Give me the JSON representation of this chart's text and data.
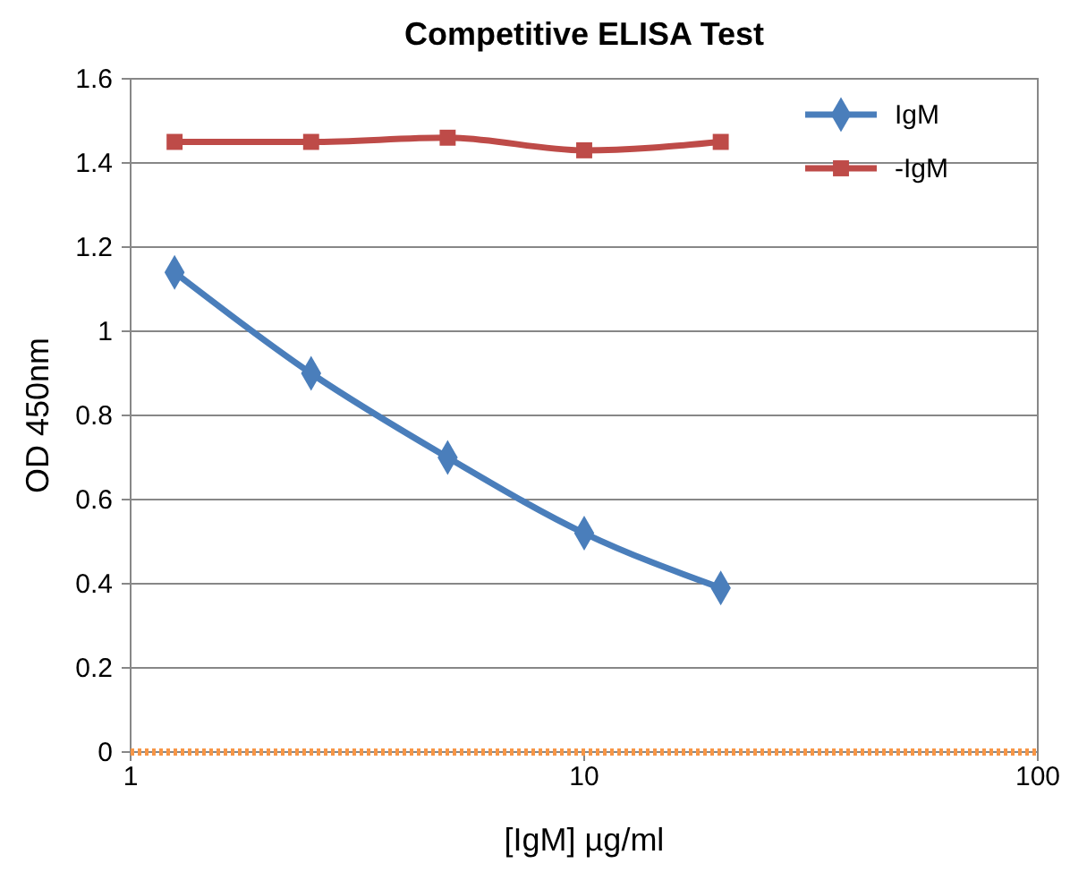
{
  "chart_data": {
    "type": "line",
    "title": "Competitive ELISA Test",
    "xlabel": "[IgM] µg/ml",
    "ylabel": "OD 450nm",
    "x": [
      1.25,
      2.5,
      5,
      10,
      20
    ],
    "series": [
      {
        "name": "IgM",
        "color": "#4a7ebb",
        "values": [
          1.14,
          0.9,
          0.7,
          0.52,
          0.39
        ],
        "marker": "diamond"
      },
      {
        "name": "-IgM",
        "color": "#be4b48",
        "values": [
          1.45,
          1.45,
          1.46,
          1.43,
          1.45
        ],
        "marker": "square"
      }
    ],
    "log": "x",
    "xlim": [
      1,
      100
    ],
    "xticks": [
      1,
      10,
      100
    ],
    "ylim": [
      0,
      1.6
    ],
    "yticks": [
      0,
      0.2,
      0.4,
      0.6,
      0.8,
      1,
      1.2,
      1.4,
      1.6
    ],
    "grid": "y",
    "legend": "top right",
    "line_style": "solid",
    "ref_lines": [
      {
        "axis": "y",
        "value": 0,
        "color": "#f79646",
        "line_style": "dotted"
      }
    ]
  }
}
